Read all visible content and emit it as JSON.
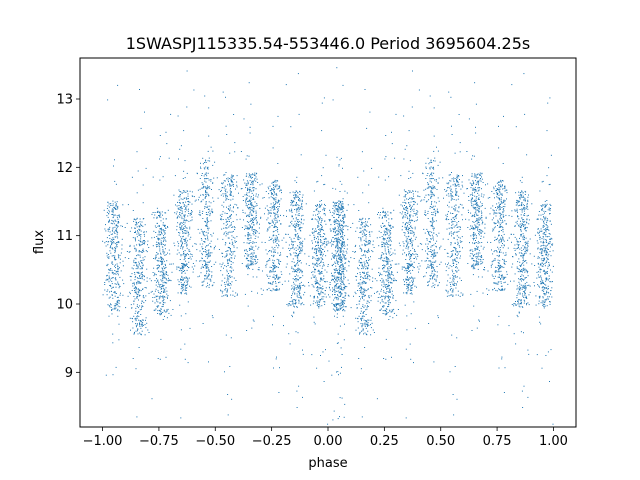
{
  "chart_data": {
    "type": "scatter",
    "title": "1SWASPJ115335.54-553446.0 Period 3695604.25s",
    "xlabel": "phase",
    "ylabel": "flux",
    "xlim": [
      -1.1,
      1.1
    ],
    "ylim": [
      8.2,
      13.6
    ],
    "x_ticks": [
      -1.0,
      -0.75,
      -0.5,
      -0.25,
      0.0,
      0.25,
      0.5,
      0.75,
      1.0
    ],
    "x_tick_labels": [
      "−1.00",
      "−0.75",
      "−0.50",
      "−0.25",
      "0.00",
      "0.25",
      "0.50",
      "0.75",
      "1.00"
    ],
    "y_ticks": [
      9,
      10,
      11,
      12,
      13
    ],
    "y_tick_labels": [
      "9",
      "10",
      "11",
      "12",
      "13"
    ],
    "grid": false,
    "marker_color": "#1f77b4",
    "phase_range": [
      -1.0,
      1.0
    ],
    "points_per_cycle": 3800,
    "clusters": [
      {
        "phase": -0.95,
        "center": 10.7,
        "spread": 0.85
      },
      {
        "phase": -0.84,
        "center": 10.4,
        "spread": 0.9
      },
      {
        "phase": -0.74,
        "center": 10.6,
        "spread": 0.8
      },
      {
        "phase": -0.64,
        "center": 10.9,
        "spread": 0.8
      },
      {
        "phase": -0.54,
        "center": 11.2,
        "spread": 1.0
      },
      {
        "phase": -0.44,
        "center": 11.0,
        "spread": 0.95
      },
      {
        "phase": -0.34,
        "center": 11.2,
        "spread": 0.75
      },
      {
        "phase": -0.24,
        "center": 11.0,
        "spread": 0.85
      },
      {
        "phase": -0.14,
        "center": 10.8,
        "spread": 0.9
      },
      {
        "phase": -0.04,
        "center": 10.7,
        "spread": 0.8
      },
      {
        "phase": 0.05,
        "center": 10.7,
        "spread": 0.85
      }
    ]
  }
}
